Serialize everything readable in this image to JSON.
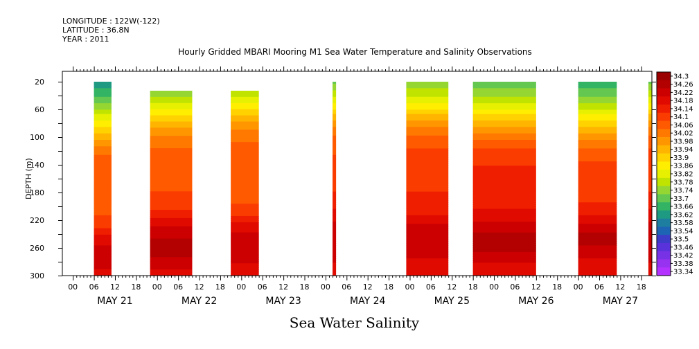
{
  "header": {
    "longitude": "LONGITUDE : 122W(-122)",
    "latitude": "LATITUDE : 36.8N",
    "year": "YEAR : 2011"
  },
  "chart_data": {
    "type": "heatmap",
    "title": "Hourly Gridded MBARI Mooring M1 Sea Water Temperature and Salinity Observations",
    "caption": "Sea Water Salinity",
    "ylabel": "DEPTH (m)",
    "y_axis": {
      "ticks": [
        20,
        60,
        100,
        140,
        180,
        220,
        260,
        300
      ],
      "range": [
        300,
        5
      ],
      "inverted": true
    },
    "x_axis": {
      "hour_ticks": [
        "00",
        "06",
        "12",
        "18",
        "00",
        "06",
        "12",
        "18",
        "00",
        "06",
        "12",
        "18",
        "00",
        "06",
        "12",
        "18",
        "00",
        "06",
        "12",
        "18",
        "00",
        "06",
        "12",
        "18",
        "00",
        "06",
        "12",
        "18"
      ],
      "day_labels": [
        "MAY 21",
        "MAY 22",
        "MAY 23",
        "MAY 24",
        "MAY 25",
        "MAY 26",
        "MAY 27"
      ],
      "range_hours": [
        -3,
        165
      ]
    },
    "colorbar": {
      "levels": [
        "34.3",
        "34.26",
        "34.22",
        "34.18",
        "34.14",
        "34.1",
        "34.06",
        "34.02",
        "33.98",
        "33.94",
        "33.9",
        "33.86",
        "33.82",
        "33.78",
        "33.74",
        "33.7",
        "33.66",
        "33.62",
        "33.58",
        "33.54",
        "33.5",
        "33.46",
        "33.42",
        "33.38",
        "33.34"
      ],
      "colors": [
        "#9b0000",
        "#b30000",
        "#cc0000",
        "#e00a00",
        "#f01e00",
        "#fa3c00",
        "#ff5a00",
        "#ff7800",
        "#ff9600",
        "#ffb400",
        "#ffd200",
        "#ffee00",
        "#e6f000",
        "#c0e400",
        "#96d632",
        "#64c850",
        "#32b464",
        "#1e9a82",
        "#1e7ea0",
        "#1e64b4",
        "#3c3cc8",
        "#5a32dc",
        "#7832e6",
        "#9632f0",
        "#b432ff"
      ]
    },
    "data_blocks": [
      {
        "start_hour": 6,
        "end_hour": 11,
        "top_depth": 20,
        "bottom_depth": 300,
        "profile": [
          33.62,
          33.66,
          33.74,
          33.82,
          33.9,
          33.98,
          34.04,
          34.06,
          34.06,
          34.06,
          34.06,
          34.08,
          34.12,
          34.18,
          34.22,
          34.22,
          34.18
        ]
      },
      {
        "start_hour": 22,
        "end_hour": 34,
        "top_depth": 33,
        "bottom_depth": 300,
        "profile": [
          33.7,
          33.74,
          33.82,
          33.9,
          33.98,
          34.02,
          34.06,
          34.06,
          34.08,
          34.08,
          34.1,
          34.14,
          34.2,
          34.24,
          34.26,
          34.22,
          34.18
        ]
      },
      {
        "start_hour": 45,
        "end_hour": 53,
        "top_depth": 33,
        "bottom_depth": 300,
        "profile": [
          33.74,
          33.78,
          33.86,
          33.94,
          34.0,
          34.04,
          34.06,
          34.06,
          34.06,
          34.08,
          34.08,
          34.12,
          34.18,
          34.22,
          34.22,
          34.2,
          34.16
        ]
      },
      {
        "start_hour": 74,
        "end_hour": 75,
        "top_depth": 20,
        "bottom_depth": 300,
        "profile": [
          33.7,
          33.78,
          33.86,
          33.94,
          34.02,
          34.06,
          34.08,
          34.1,
          34.1,
          34.12,
          34.14,
          34.18,
          34.22,
          34.24,
          34.22,
          34.2,
          34.18
        ]
      },
      {
        "start_hour": 95,
        "end_hour": 107,
        "top_depth": 20,
        "bottom_depth": 300,
        "profile": [
          33.74,
          33.78,
          33.86,
          33.94,
          34.02,
          34.06,
          34.1,
          34.1,
          34.1,
          34.12,
          34.14,
          34.16,
          34.22,
          34.24,
          34.22,
          34.18,
          34.16
        ]
      },
      {
        "start_hour": 114,
        "end_hour": 132,
        "top_depth": 20,
        "bottom_depth": 300,
        "profile": [
          33.7,
          33.74,
          33.82,
          33.9,
          33.98,
          34.06,
          34.1,
          34.12,
          34.14,
          34.14,
          34.14,
          34.18,
          34.22,
          34.26,
          34.24,
          34.2,
          34.18
        ]
      },
      {
        "start_hour": 144,
        "end_hour": 155,
        "top_depth": 20,
        "bottom_depth": 300,
        "profile": [
          33.66,
          33.7,
          33.78,
          33.86,
          33.94,
          34.02,
          34.06,
          34.1,
          34.12,
          34.12,
          34.12,
          34.16,
          34.22,
          34.26,
          34.22,
          34.18,
          34.18
        ]
      },
      {
        "start_hour": 164,
        "end_hour": 165,
        "top_depth": 20,
        "bottom_depth": 300,
        "profile": [
          33.7,
          33.78,
          33.86,
          33.94,
          34.02,
          34.06,
          34.1,
          34.1,
          34.12,
          34.12,
          34.14,
          34.18,
          34.22,
          34.24,
          34.22,
          34.2,
          34.18
        ]
      }
    ]
  }
}
